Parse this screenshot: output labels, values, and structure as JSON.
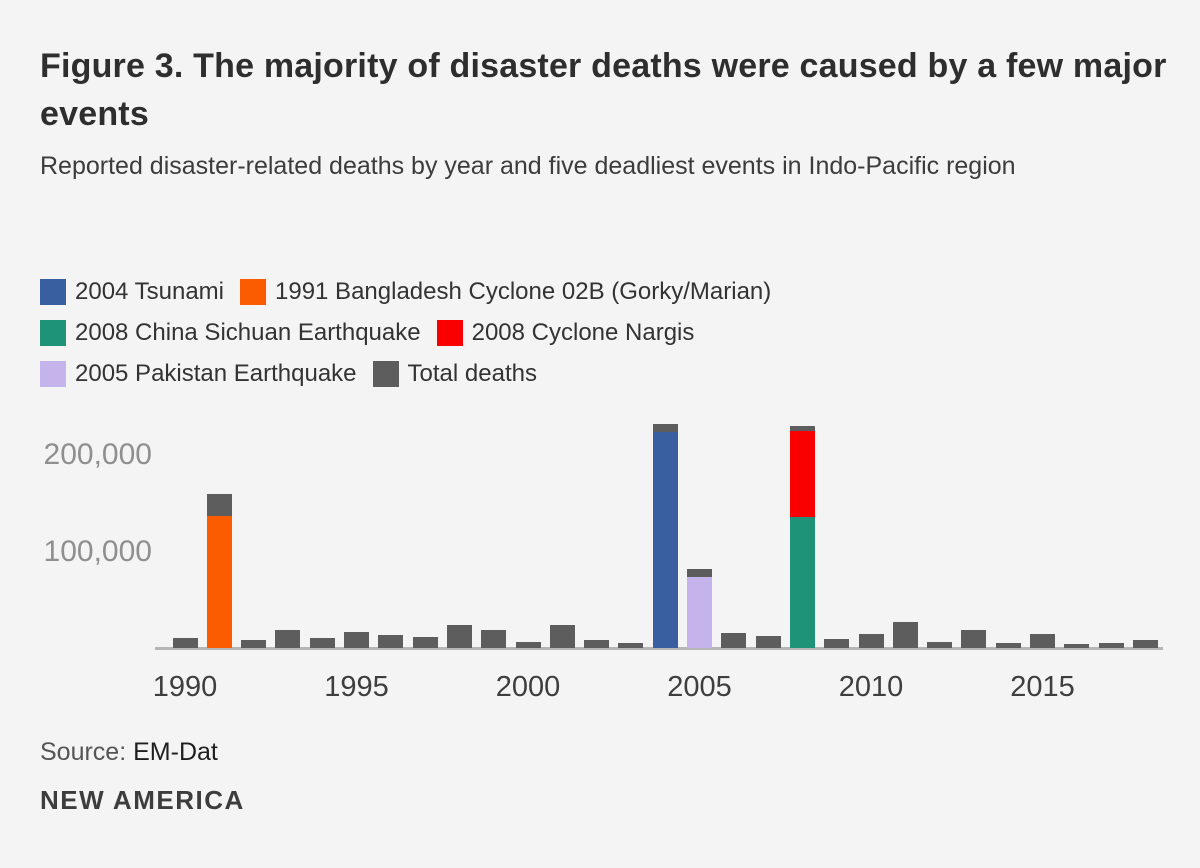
{
  "header": {
    "title": "Figure 3. The majority of disaster deaths were caused by a few major events",
    "subtitle": "Reported disaster-related deaths by year and five deadliest events in Indo-Pacific region"
  },
  "footer": {
    "source_label": "Source:",
    "source_value": "EM-Dat",
    "brand": "NEW AMERICA"
  },
  "colors": {
    "background": "#f4f4f4",
    "tsunami": "#3a5fa0",
    "cyclone02b": "#fb5c01",
    "sichuan": "#1e9377",
    "nargis": "#fa0000",
    "pakistan": "#c4b4eb",
    "total": "#5d5d5d",
    "axis_line": "#b5b5b5",
    "y_tick_text": "#8f8f8f",
    "x_tick_text": "#3e3e3e"
  },
  "chart_data": {
    "type": "bar",
    "subtype": "stacked",
    "title": "Figure 3. The majority of disaster deaths were caused by a few major events",
    "xlabel": "",
    "ylabel": "Reported disaster-related deaths",
    "ylim": [
      0,
      235000
    ],
    "grid": false,
    "legend_position": "top-left",
    "legend_rows": [
      [
        {
          "key": "tsunami",
          "label": "2004 Tsunami"
        },
        {
          "key": "cyclone02b",
          "label": "1991 Bangladesh Cyclone 02B (Gorky/Marian)"
        }
      ],
      [
        {
          "key": "sichuan",
          "label": "2008 China Sichuan Earthquake"
        },
        {
          "key": "nargis",
          "label": "2008 Cyclone Nargis"
        }
      ],
      [
        {
          "key": "pakistan",
          "label": "2005 Pakistan Earthquake"
        },
        {
          "key": "total",
          "label": "Total deaths"
        }
      ]
    ],
    "y_ticks": [
      {
        "label": "100,000",
        "value": 100000
      },
      {
        "label": "200,000",
        "value": 200000
      }
    ],
    "x_ticks": [
      1990,
      1995,
      2000,
      2005,
      2010,
      2015
    ],
    "bars": [
      {
        "year": 1990,
        "segments": [
          {
            "key": "total",
            "value": 10000
          }
        ]
      },
      {
        "year": 1991,
        "segments": [
          {
            "key": "cyclone02b",
            "value": 137000
          },
          {
            "key": "total",
            "value": 23000
          }
        ]
      },
      {
        "year": 1992,
        "segments": [
          {
            "key": "total",
            "value": 8000
          }
        ]
      },
      {
        "year": 1993,
        "segments": [
          {
            "key": "total",
            "value": 19000
          }
        ]
      },
      {
        "year": 1994,
        "segments": [
          {
            "key": "total",
            "value": 10000
          }
        ]
      },
      {
        "year": 1995,
        "segments": [
          {
            "key": "total",
            "value": 17000
          }
        ]
      },
      {
        "year": 1996,
        "segments": [
          {
            "key": "total",
            "value": 13000
          }
        ]
      },
      {
        "year": 1997,
        "segments": [
          {
            "key": "total",
            "value": 11000
          }
        ]
      },
      {
        "year": 1998,
        "segments": [
          {
            "key": "total",
            "value": 24000
          }
        ]
      },
      {
        "year": 1999,
        "segments": [
          {
            "key": "total",
            "value": 19000
          }
        ]
      },
      {
        "year": 2000,
        "segments": [
          {
            "key": "total",
            "value": 6000
          }
        ]
      },
      {
        "year": 2001,
        "segments": [
          {
            "key": "total",
            "value": 24000
          }
        ]
      },
      {
        "year": 2002,
        "segments": [
          {
            "key": "total",
            "value": 8000
          }
        ]
      },
      {
        "year": 2003,
        "segments": [
          {
            "key": "total",
            "value": 5000
          }
        ]
      },
      {
        "year": 2004,
        "segments": [
          {
            "key": "tsunami",
            "value": 224000
          },
          {
            "key": "total",
            "value": 8000
          }
        ]
      },
      {
        "year": 2005,
        "segments": [
          {
            "key": "pakistan",
            "value": 74000
          },
          {
            "key": "total",
            "value": 8000
          }
        ]
      },
      {
        "year": 2006,
        "segments": [
          {
            "key": "total",
            "value": 16000
          }
        ]
      },
      {
        "year": 2007,
        "segments": [
          {
            "key": "total",
            "value": 12000
          }
        ]
      },
      {
        "year": 2008,
        "segments": [
          {
            "key": "sichuan",
            "value": 136000
          },
          {
            "key": "nargis",
            "value": 89000
          },
          {
            "key": "total",
            "value": 5000
          }
        ]
      },
      {
        "year": 2009,
        "segments": [
          {
            "key": "total",
            "value": 9000
          }
        ]
      },
      {
        "year": 2010,
        "segments": [
          {
            "key": "total",
            "value": 15000
          }
        ]
      },
      {
        "year": 2011,
        "segments": [
          {
            "key": "total",
            "value": 27000
          }
        ]
      },
      {
        "year": 2012,
        "segments": [
          {
            "key": "total",
            "value": 6000
          }
        ]
      },
      {
        "year": 2013,
        "segments": [
          {
            "key": "total",
            "value": 19000
          }
        ]
      },
      {
        "year": 2014,
        "segments": [
          {
            "key": "total",
            "value": 5000
          }
        ]
      },
      {
        "year": 2015,
        "segments": [
          {
            "key": "total",
            "value": 15000
          }
        ]
      },
      {
        "year": 2016,
        "segments": [
          {
            "key": "total",
            "value": 4000
          }
        ]
      },
      {
        "year": 2017,
        "segments": [
          {
            "key": "total",
            "value": 5000
          }
        ]
      },
      {
        "year": 2018,
        "segments": [
          {
            "key": "total",
            "value": 8000
          }
        ]
      }
    ]
  }
}
